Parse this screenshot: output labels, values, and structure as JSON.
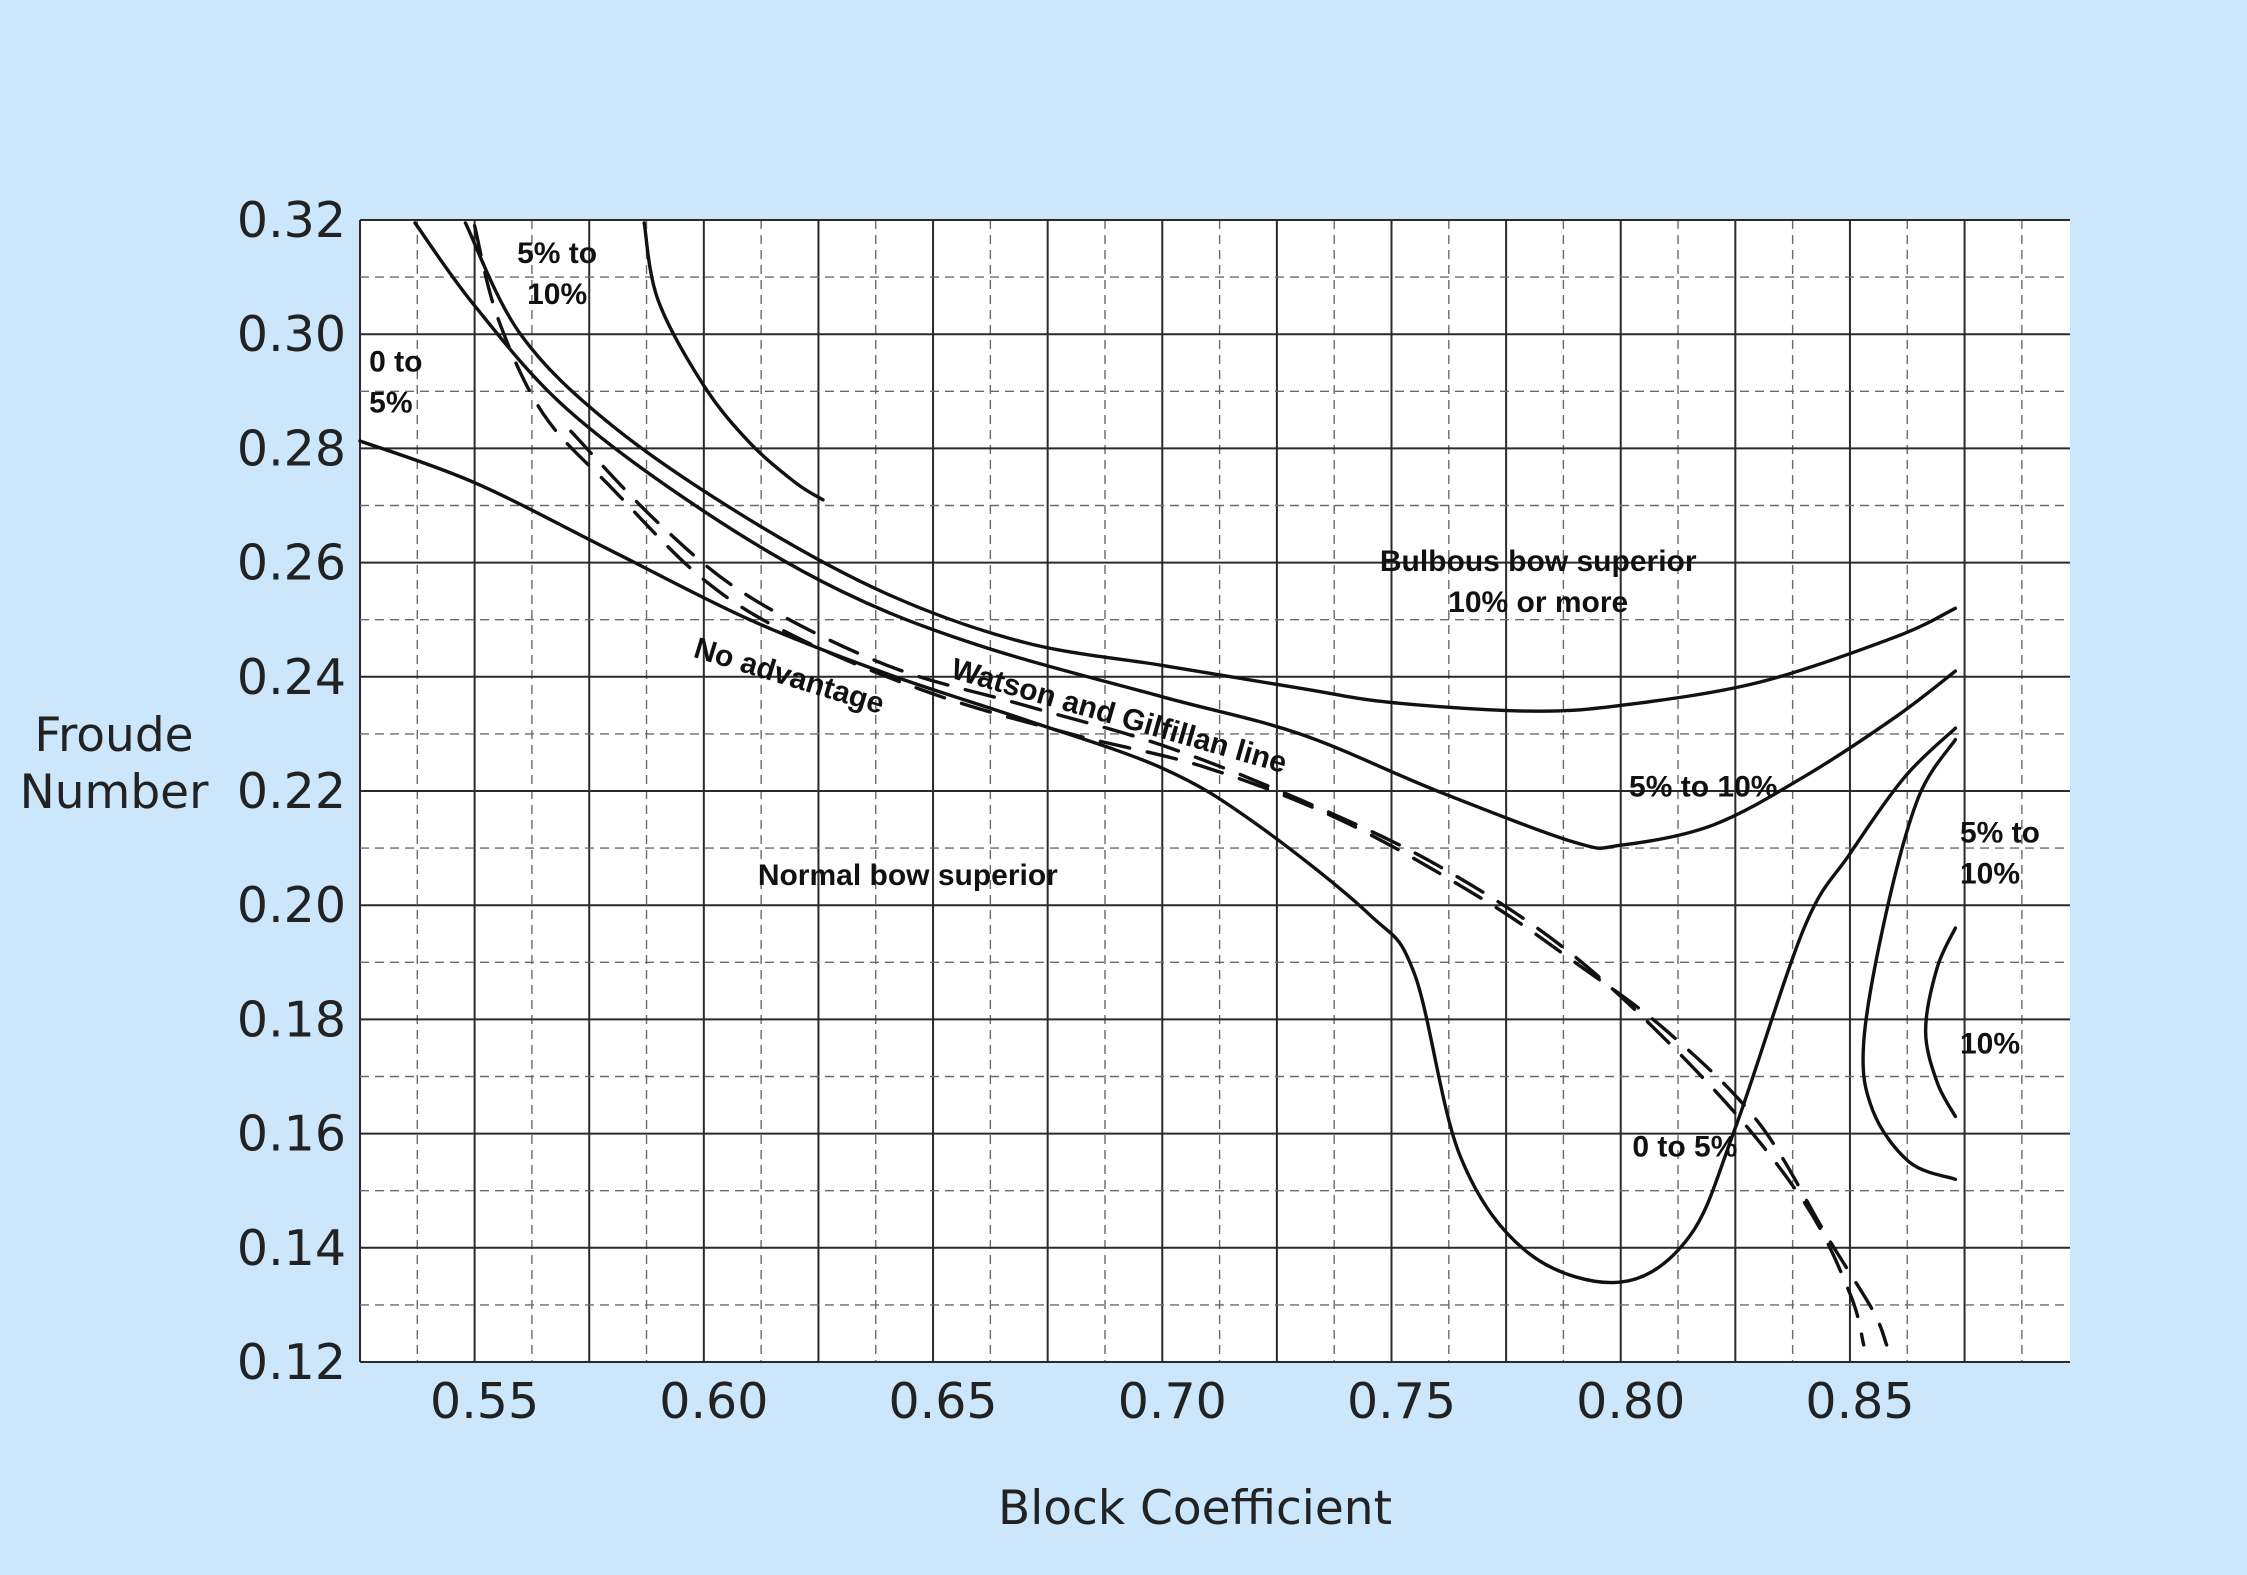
{
  "chart_data": {
    "type": "line",
    "title": "",
    "xlabel": "Block Coefficient",
    "ylabel_lines": [
      "Froude",
      "Number"
    ],
    "xlim": [
      0.525,
      0.898
    ],
    "ylim": [
      0.12,
      0.32
    ],
    "grid": true,
    "x_ticks": [
      {
        "value": 0.55,
        "label": "0.55"
      },
      {
        "value": 0.6,
        "label": "0.60"
      },
      {
        "value": 0.65,
        "label": "0.65"
      },
      {
        "value": 0.7,
        "label": "0.70"
      },
      {
        "value": 0.75,
        "label": "0.75"
      },
      {
        "value": 0.8,
        "label": "0.80"
      },
      {
        "value": 0.85,
        "label": "0.85"
      }
    ],
    "y_ticks": [
      {
        "value": 0.32,
        "label": "0.32"
      },
      {
        "value": 0.3,
        "label": "0.30"
      },
      {
        "value": 0.28,
        "label": "0.28"
      },
      {
        "value": 0.26,
        "label": "0.26"
      },
      {
        "value": 0.24,
        "label": "0.24"
      },
      {
        "value": 0.22,
        "label": "0.22"
      },
      {
        "value": 0.2,
        "label": "0.20"
      },
      {
        "value": 0.18,
        "label": "0.18"
      },
      {
        "value": 0.16,
        "label": "0.16"
      },
      {
        "value": 0.14,
        "label": "0.14"
      },
      {
        "value": 0.12,
        "label": "0.12"
      }
    ],
    "series": [
      {
        "style": "solid",
        "points": [
          [
            0.525,
            0.2813
          ],
          [
            0.55,
            0.274
          ],
          [
            0.58,
            0.262
          ],
          [
            0.61,
            0.25
          ],
          [
            0.64,
            0.2405
          ],
          [
            0.67,
            0.2325
          ],
          [
            0.7,
            0.224
          ],
          [
            0.72,
            0.2145
          ],
          [
            0.745,
            0.1985
          ],
          [
            0.755,
            0.188
          ],
          [
            0.765,
            0.156
          ],
          [
            0.78,
            0.139
          ],
          [
            0.8,
            0.134
          ],
          [
            0.815,
            0.142
          ],
          [
            0.825,
            0.161
          ],
          [
            0.84,
            0.196
          ],
          [
            0.85,
            0.209
          ],
          [
            0.862,
            0.2225
          ],
          [
            0.873,
            0.231
          ]
        ]
      },
      {
        "style": "solid",
        "points": [
          [
            0.537,
            0.3195
          ],
          [
            0.55,
            0.305
          ],
          [
            0.57,
            0.287
          ],
          [
            0.6,
            0.269
          ],
          [
            0.63,
            0.255
          ],
          [
            0.66,
            0.2455
          ],
          [
            0.7,
            0.2365
          ],
          [
            0.73,
            0.23
          ],
          [
            0.76,
            0.22
          ],
          [
            0.79,
            0.211
          ],
          [
            0.8,
            0.2105
          ],
          [
            0.82,
            0.214
          ],
          [
            0.84,
            0.2225
          ],
          [
            0.86,
            0.233
          ],
          [
            0.873,
            0.241
          ]
        ]
      },
      {
        "style": "solid",
        "points": [
          [
            0.548,
            0.3195
          ],
          [
            0.56,
            0.3
          ],
          [
            0.58,
            0.284
          ],
          [
            0.61,
            0.2675
          ],
          [
            0.64,
            0.2545
          ],
          [
            0.67,
            0.246
          ],
          [
            0.7,
            0.242
          ],
          [
            0.73,
            0.238
          ],
          [
            0.75,
            0.2355
          ],
          [
            0.78,
            0.234
          ],
          [
            0.8,
            0.235
          ],
          [
            0.83,
            0.239
          ],
          [
            0.86,
            0.247
          ],
          [
            0.873,
            0.252
          ]
        ]
      },
      {
        "style": "solid",
        "points": [
          [
            0.587,
            0.3195
          ],
          [
            0.59,
            0.306
          ],
          [
            0.6,
            0.291
          ],
          [
            0.61,
            0.281
          ],
          [
            0.62,
            0.274
          ],
          [
            0.626,
            0.271
          ]
        ]
      },
      {
        "style": "dashed",
        "points": [
          [
            0.55,
            0.319
          ],
          [
            0.555,
            0.303
          ],
          [
            0.565,
            0.286
          ],
          [
            0.58,
            0.273
          ],
          [
            0.6,
            0.257
          ],
          [
            0.62,
            0.247
          ],
          [
            0.65,
            0.237
          ],
          [
            0.68,
            0.23
          ],
          [
            0.71,
            0.224
          ],
          [
            0.74,
            0.2145
          ],
          [
            0.77,
            0.201
          ],
          [
            0.79,
            0.19
          ],
          [
            0.81,
            0.178
          ],
          [
            0.83,
            0.162
          ],
          [
            0.845,
            0.142
          ],
          [
            0.855,
            0.129
          ],
          [
            0.858,
            0.123
          ]
        ]
      },
      {
        "style": "dashed",
        "points": [
          [
            0.571,
            0.283
          ],
          [
            0.59,
            0.267
          ],
          [
            0.61,
            0.254
          ],
          [
            0.64,
            0.242
          ],
          [
            0.67,
            0.235
          ],
          [
            0.7,
            0.228
          ],
          [
            0.73,
            0.2185
          ],
          [
            0.76,
            0.207
          ],
          [
            0.79,
            0.191
          ],
          [
            0.82,
            0.168
          ],
          [
            0.84,
            0.148
          ],
          [
            0.85,
            0.132
          ],
          [
            0.853,
            0.123
          ]
        ]
      },
      {
        "style": "solid",
        "points": [
          [
            0.873,
            0.229
          ],
          [
            0.865,
            0.219
          ],
          [
            0.858,
            0.199
          ],
          [
            0.853,
            0.176
          ],
          [
            0.855,
            0.164
          ],
          [
            0.863,
            0.155
          ],
          [
            0.873,
            0.152
          ]
        ]
      },
      {
        "style": "solid",
        "points": [
          [
            0.873,
            0.196
          ],
          [
            0.869,
            0.189
          ],
          [
            0.8665,
            0.178
          ],
          [
            0.869,
            0.169
          ],
          [
            0.873,
            0.163
          ]
        ]
      }
    ],
    "annotations": [
      {
        "lines": [
          "5% to",
          "10%"
        ],
        "x": 0.568,
        "y": 0.3125,
        "anchor": "middle"
      },
      {
        "lines": [
          "0 to",
          "5%"
        ],
        "x": 0.527,
        "y": 0.2935,
        "anchor": "start"
      },
      {
        "lines": [
          "Bulbous bow superior",
          "10% or more"
        ],
        "x": 0.782,
        "y": 0.2585,
        "anchor": "middle"
      },
      {
        "lines": [
          "No advantage"
        ],
        "x": 0.618,
        "y": 0.2385,
        "anchor": "middle",
        "rotate": 17
      },
      {
        "lines": [
          "Watson and Gilfillan line"
        ],
        "x": 0.69,
        "y": 0.2315,
        "anchor": "middle",
        "rotate": 16
      },
      {
        "lines": [
          "5% to 10%"
        ],
        "x": 0.818,
        "y": 0.219,
        "anchor": "middle"
      },
      {
        "lines": [
          "Normal bow superior"
        ],
        "x": 0.6445,
        "y": 0.2035,
        "anchor": "middle"
      },
      {
        "lines": [
          "5% to",
          "10%"
        ],
        "x": 0.874,
        "y": 0.211,
        "anchor": "start"
      },
      {
        "lines": [
          "10%"
        ],
        "x": 0.874,
        "y": 0.174,
        "anchor": "start"
      },
      {
        "lines": [
          "0 to 5%"
        ],
        "x": 0.814,
        "y": 0.156,
        "anchor": "middle"
      }
    ]
  }
}
